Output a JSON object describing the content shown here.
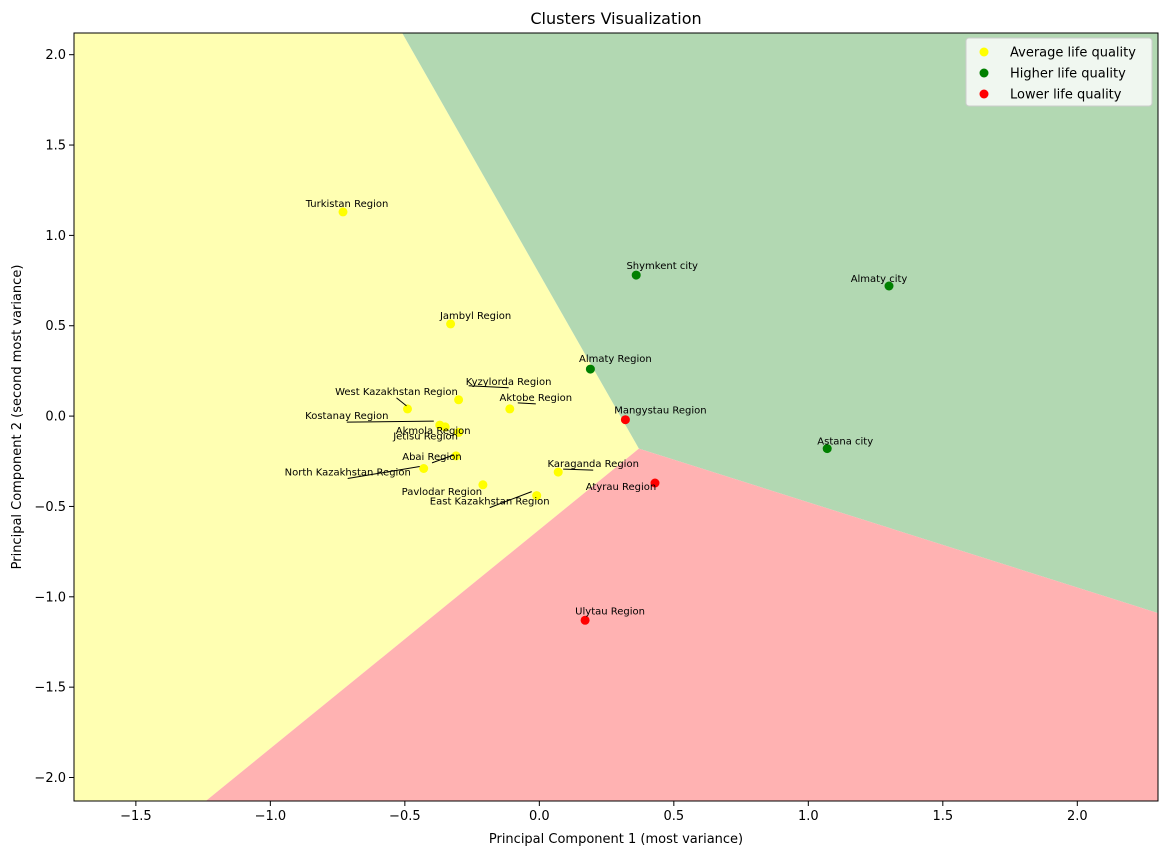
{
  "chart_data": {
    "type": "scatter",
    "title": "Clusters Visualization",
    "xlabel": "Principal Component 1 (most variance)",
    "ylabel": "Principal Component 2 (second most variance)",
    "xlim": [
      -1.73,
      2.3
    ],
    "ylim": [
      -2.13,
      2.12
    ],
    "xticks": [
      -1.5,
      -1.0,
      -0.5,
      0.0,
      0.5,
      1.0,
      1.5,
      2.0
    ],
    "xtick_labels": [
      "−1.5",
      "−1.0",
      "−0.5",
      "0.0",
      "0.5",
      "1.0",
      "1.5",
      "2.0"
    ],
    "yticks": [
      -2.0,
      -1.5,
      -1.0,
      -0.5,
      0.0,
      0.5,
      1.0,
      1.5,
      2.0
    ],
    "ytick_labels": [
      "−2.0",
      "−1.5",
      "−1.0",
      "−0.5",
      "0.0",
      "0.5",
      "1.0",
      "1.5",
      "2.0"
    ],
    "grid": false,
    "legend_position": "top-right",
    "regions": [
      {
        "name": "Average life quality",
        "fill": "#ffffb2",
        "polygon": [
          [
            -1.73,
            2.12
          ],
          [
            -0.51,
            2.12
          ],
          [
            0.37,
            -0.18
          ],
          [
            -1.24,
            -2.13
          ],
          [
            -1.73,
            -2.13
          ]
        ]
      },
      {
        "name": "Higher life quality",
        "fill": "#b2d8b2",
        "polygon": [
          [
            -0.51,
            2.12
          ],
          [
            2.3,
            2.12
          ],
          [
            2.3,
            -1.09
          ],
          [
            0.37,
            -0.18
          ]
        ]
      },
      {
        "name": "Lower life quality",
        "fill": "#ffb2b2",
        "polygon": [
          [
            0.37,
            -0.18
          ],
          [
            2.3,
            -1.09
          ],
          [
            2.3,
            -2.13
          ],
          [
            -1.24,
            -2.13
          ]
        ]
      }
    ],
    "series": [
      {
        "name": "Average life quality",
        "color": "#ffff00",
        "points": [
          {
            "label": "Turkistan Region",
            "x": -0.73,
            "y": 1.13
          },
          {
            "label": "Jambyl Region",
            "x": -0.33,
            "y": 0.51
          },
          {
            "label": "Kyzylorda Region",
            "x": -0.3,
            "y": 0.09
          },
          {
            "label": "West Kazakhstan Region",
            "x": -0.49,
            "y": 0.04
          },
          {
            "label": "Aktobe Region",
            "x": -0.11,
            "y": 0.04
          },
          {
            "label": "Kostanay Region",
            "x": -0.37,
            "y": -0.05
          },
          {
            "label": "Akmola Region",
            "x": -0.35,
            "y": -0.06
          },
          {
            "label": "Jetisu Region",
            "x": -0.3,
            "y": -0.09
          },
          {
            "label": "Abai Region",
            "x": -0.31,
            "y": -0.22
          },
          {
            "label": "North Kazakhstan Region",
            "x": -0.43,
            "y": -0.29
          },
          {
            "label": "Karaganda Region",
            "x": 0.07,
            "y": -0.31
          },
          {
            "label": "Pavlodar Region",
            "x": -0.21,
            "y": -0.38
          },
          {
            "label": "East Kazakhstan Region",
            "x": -0.01,
            "y": -0.44
          }
        ]
      },
      {
        "name": "Higher life quality",
        "color": "#008000",
        "points": [
          {
            "label": "Shymkent city",
            "x": 0.36,
            "y": 0.78
          },
          {
            "label": "Almaty city",
            "x": 1.3,
            "y": 0.72
          },
          {
            "label": "Almaty Region",
            "x": 0.19,
            "y": 0.26
          },
          {
            "label": "Astana city",
            "x": 1.07,
            "y": -0.18
          }
        ]
      },
      {
        "name": "Lower life quality",
        "color": "#ff0000",
        "points": [
          {
            "label": "Mangystau Region",
            "x": 0.32,
            "y": -0.02
          },
          {
            "label": "Atyrau Region",
            "x": 0.43,
            "y": -0.37
          },
          {
            "label": "Ulytau Region",
            "x": 0.17,
            "y": -1.13
          }
        ]
      }
    ]
  }
}
